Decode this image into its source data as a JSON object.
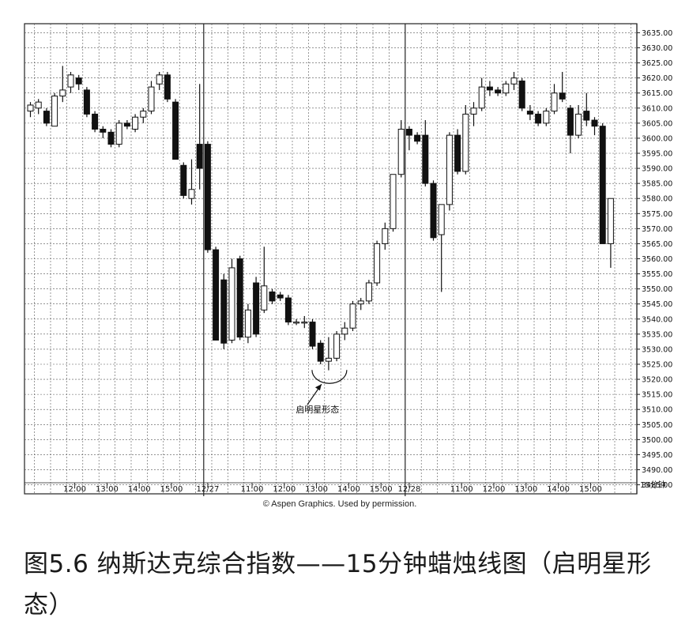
{
  "figure_title": "图5.6 纳斯达克综合指数——15分钟蜡烛线图（启明星形态）",
  "caption": "© Aspen Graphics. Used by permission.",
  "chart_data": {
    "type": "candlestick",
    "title": "",
    "xlabel": "",
    "ylabel": "",
    "ylim": [
      3482,
      3638
    ],
    "y_tick_labels": [
      "3635.00",
      "3630.00",
      "3625.00",
      "3620.00",
      "3615.00",
      "3610.00",
      "3605.00",
      "3600.00",
      "3595.00",
      "3590.00",
      "3585.00",
      "3580.00",
      "3575.00",
      "3570.00",
      "3565.00",
      "3560.00",
      "3555.00",
      "3550.00",
      "3545.00",
      "3540.00",
      "3535.00",
      "3530.00",
      "3525.00",
      "3520.00",
      "3515.00",
      "3510.00",
      "3505.00",
      "3500.00",
      "3495.00",
      "3490.00",
      "3485.00"
    ],
    "y_tick_values": [
      3635,
      3630,
      3625,
      3620,
      3615,
      3610,
      3605,
      3600,
      3595,
      3590,
      3585,
      3580,
      3575,
      3570,
      3565,
      3560,
      3555,
      3550,
      3545,
      3540,
      3535,
      3530,
      3525,
      3520,
      3515,
      3510,
      3505,
      3500,
      3495,
      3490,
      3485
    ],
    "x_tick_labels": [
      {
        "label": "12:00",
        "bar": 6
      },
      {
        "label": "13:00",
        "bar": 10
      },
      {
        "label": "14:00",
        "bar": 14
      },
      {
        "label": "15:00",
        "bar": 18
      },
      {
        "label": "12/27",
        "bar": 22.5
      },
      {
        "label": "11:00",
        "bar": 28
      },
      {
        "label": "12:00",
        "bar": 32
      },
      {
        "label": "13:00",
        "bar": 36
      },
      {
        "label": "14:00",
        "bar": 40
      },
      {
        "label": "15:00",
        "bar": 44
      },
      {
        "label": "12/28",
        "bar": 47.5
      },
      {
        "label": "11:00",
        "bar": 54
      },
      {
        "label": "12:00",
        "bar": 58
      },
      {
        "label": "13:00",
        "bar": 62
      },
      {
        "label": "14:00",
        "bar": 66
      },
      {
        "label": "15:00",
        "bar": 70
      }
    ],
    "x_unit_label": "15分钟",
    "grid": true,
    "candles": [
      {
        "o": 3609,
        "h": 3612,
        "l": 3607,
        "c": 3611
      },
      {
        "o": 3610,
        "h": 3613,
        "l": 3608,
        "c": 3612
      },
      {
        "o": 3609,
        "h": 3610,
        "l": 3604,
        "c": 3605
      },
      {
        "o": 3604,
        "h": 3615,
        "l": 3604,
        "c": 3614
      },
      {
        "o": 3614,
        "h": 3624,
        "l": 3612,
        "c": 3616
      },
      {
        "o": 3617,
        "h": 3622,
        "l": 3615,
        "c": 3621
      },
      {
        "o": 3620,
        "h": 3621,
        "l": 3616,
        "c": 3618
      },
      {
        "o": 3616,
        "h": 3617,
        "l": 3607,
        "c": 3608
      },
      {
        "o": 3608,
        "h": 3609,
        "l": 3602,
        "c": 3603
      },
      {
        "o": 3603,
        "h": 3604,
        "l": 3600,
        "c": 3602
      },
      {
        "o": 3602,
        "h": 3603,
        "l": 3597,
        "c": 3598
      },
      {
        "o": 3598,
        "h": 3606,
        "l": 3597,
        "c": 3605
      },
      {
        "o": 3605,
        "h": 3606,
        "l": 3603,
        "c": 3604
      },
      {
        "o": 3603,
        "h": 3608,
        "l": 3602,
        "c": 3607
      },
      {
        "o": 3607,
        "h": 3610,
        "l": 3605,
        "c": 3609
      },
      {
        "o": 3609,
        "h": 3619,
        "l": 3608,
        "c": 3617
      },
      {
        "o": 3618,
        "h": 3622,
        "l": 3616,
        "c": 3621
      },
      {
        "o": 3621,
        "h": 3622,
        "l": 3612,
        "c": 3613
      },
      {
        "o": 3612,
        "h": 3613,
        "l": 3593,
        "c": 3593
      },
      {
        "o": 3591,
        "h": 3592,
        "l": 3580,
        "c": 3581
      },
      {
        "o": 3580,
        "h": 3593,
        "l": 3578,
        "c": 3583
      },
      {
        "o": 3598,
        "h": 3618,
        "l": 3583,
        "c": 3590
      },
      {
        "o": 3598,
        "h": 3599,
        "l": 3562,
        "c": 3563
      },
      {
        "o": 3563,
        "h": 3564,
        "l": 3533,
        "c": 3533
      },
      {
        "o": 3553,
        "h": 3555,
        "l": 3530,
        "c": 3532
      },
      {
        "o": 3533,
        "h": 3560,
        "l": 3532,
        "c": 3557
      },
      {
        "o": 3560,
        "h": 3561,
        "l": 3533,
        "c": 3534
      },
      {
        "o": 3534,
        "h": 3545,
        "l": 3532,
        "c": 3543
      },
      {
        "o": 3552,
        "h": 3554,
        "l": 3534,
        "c": 3535
      },
      {
        "o": 3543,
        "h": 3564,
        "l": 3542,
        "c": 3551
      },
      {
        "o": 3549,
        "h": 3550,
        "l": 3545,
        "c": 3546
      },
      {
        "o": 3548,
        "h": 3549,
        "l": 3546,
        "c": 3547
      },
      {
        "o": 3547,
        "h": 3548,
        "l": 3538,
        "c": 3539
      },
      {
        "o": 3539,
        "h": 3540,
        "l": 3538,
        "c": 3539
      },
      {
        "o": 3539,
        "h": 3541,
        "l": 3537,
        "c": 3539
      },
      {
        "o": 3539,
        "h": 3540,
        "l": 3530,
        "c": 3531
      },
      {
        "o": 3532,
        "h": 3533,
        "l": 3525,
        "c": 3526
      },
      {
        "o": 3526,
        "h": 3534,
        "l": 3523,
        "c": 3527
      },
      {
        "o": 3527,
        "h": 3536,
        "l": 3526,
        "c": 3535
      },
      {
        "o": 3535,
        "h": 3539,
        "l": 3533,
        "c": 3537
      },
      {
        "o": 3537,
        "h": 3546,
        "l": 3536,
        "c": 3545
      },
      {
        "o": 3545,
        "h": 3547,
        "l": 3543,
        "c": 3546
      },
      {
        "o": 3546,
        "h": 3553,
        "l": 3545,
        "c": 3552
      },
      {
        "o": 3552,
        "h": 3566,
        "l": 3551,
        "c": 3565
      },
      {
        "o": 3565,
        "h": 3572,
        "l": 3563,
        "c": 3570
      },
      {
        "o": 3570,
        "h": 3588,
        "l": 3569,
        "c": 3588
      },
      {
        "o": 3588,
        "h": 3606,
        "l": 3587,
        "c": 3603
      },
      {
        "o": 3603,
        "h": 3604,
        "l": 3596,
        "c": 3601
      },
      {
        "o": 3601,
        "h": 3602,
        "l": 3598,
        "c": 3599
      },
      {
        "o": 3601,
        "h": 3606,
        "l": 3584,
        "c": 3585
      },
      {
        "o": 3585,
        "h": 3586,
        "l": 3566,
        "c": 3567
      },
      {
        "o": 3568,
        "h": 3578,
        "l": 3549,
        "c": 3578
      },
      {
        "o": 3578,
        "h": 3602,
        "l": 3576,
        "c": 3601
      },
      {
        "o": 3601,
        "h": 3603,
        "l": 3588,
        "c": 3589
      },
      {
        "o": 3589,
        "h": 3611,
        "l": 3588,
        "c": 3608
      },
      {
        "o": 3608,
        "h": 3612,
        "l": 3604,
        "c": 3610
      },
      {
        "o": 3610,
        "h": 3620,
        "l": 3609,
        "c": 3617
      },
      {
        "o": 3617,
        "h": 3619,
        "l": 3614,
        "c": 3616
      },
      {
        "o": 3616,
        "h": 3617,
        "l": 3614,
        "c": 3615
      },
      {
        "o": 3615,
        "h": 3619,
        "l": 3614,
        "c": 3618
      },
      {
        "o": 3618,
        "h": 3622,
        "l": 3616,
        "c": 3620
      },
      {
        "o": 3619,
        "h": 3620,
        "l": 3609,
        "c": 3610
      },
      {
        "o": 3609,
        "h": 3611,
        "l": 3606,
        "c": 3608
      },
      {
        "o": 3608,
        "h": 3609,
        "l": 3604,
        "c": 3605
      },
      {
        "o": 3605,
        "h": 3610,
        "l": 3604,
        "c": 3609
      },
      {
        "o": 3609,
        "h": 3618,
        "l": 3608,
        "c": 3615
      },
      {
        "o": 3615,
        "h": 3622,
        "l": 3612,
        "c": 3613
      },
      {
        "o": 3610,
        "h": 3611,
        "l": 3595,
        "c": 3601
      },
      {
        "o": 3601,
        "h": 3611,
        "l": 3600,
        "c": 3608
      },
      {
        "o": 3609,
        "h": 3615,
        "l": 3604,
        "c": 3606
      },
      {
        "o": 3606,
        "h": 3607,
        "l": 3601,
        "c": 3604
      },
      {
        "o": 3604,
        "h": 3605,
        "l": 3565,
        "c": 3565
      },
      {
        "o": 3565,
        "h": 3580,
        "l": 3557,
        "c": 3580
      }
    ],
    "annotations": [
      {
        "text": "启明星形态",
        "x_bar": 36.6,
        "y": 3510,
        "target_bar": 37,
        "target_y": 3521
      }
    ]
  }
}
